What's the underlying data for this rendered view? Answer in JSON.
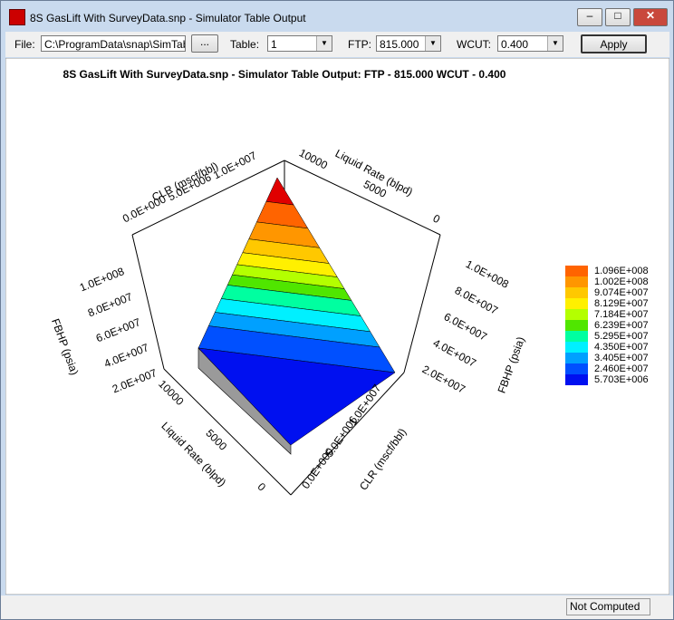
{
  "window": {
    "title": "8S GasLift With SurveyData.snp - Simulator Table Output"
  },
  "toolbar": {
    "file_label": "File:",
    "file_value": "C:\\ProgramData\\snap\\SimTab",
    "browse": "...",
    "table_label": "Table:",
    "table_value": "1",
    "ftp_label": "FTP:",
    "ftp_value": "815.000",
    "wcut_label": "WCUT:",
    "wcut_value": "0.400",
    "apply": "Apply"
  },
  "chart": {
    "title": "8S GasLift With SurveyData.snp - Simulator Table Output: FTP - 815.000 WCUT - 0.400",
    "z_axis_label": "FBHP (psia)",
    "z_ticks": [
      "1.0E+008",
      "8.0E+007",
      "6.0E+007",
      "4.0E+007",
      "2.0E+007"
    ],
    "clr_axis_label": "CLR (mscf/bbl)",
    "clr_ticks": [
      "0.0E+000",
      "5.0E+006",
      "1.0E+007"
    ],
    "rate_axis_label": "Liquid Rate (blpd)",
    "rate_ticks": [
      "10000",
      "5000",
      "0"
    ],
    "legend": [
      {
        "label": "1.096E+008",
        "color": "#ff6400"
      },
      {
        "label": "1.002E+008",
        "color": "#ff9600"
      },
      {
        "label": "9.074E+007",
        "color": "#ffc800"
      },
      {
        "label": "8.129E+007",
        "color": "#fff000"
      },
      {
        "label": "7.184E+007",
        "color": "#b4ff00"
      },
      {
        "label": "6.239E+007",
        "color": "#50e600"
      },
      {
        "label": "5.295E+007",
        "color": "#00ffa0"
      },
      {
        "label": "4.350E+007",
        "color": "#00f0ff"
      },
      {
        "label": "3.405E+007",
        "color": "#00a0ff"
      },
      {
        "label": "2.460E+007",
        "color": "#0050ff"
      },
      {
        "label": "5.703E+006",
        "color": "#0010f0"
      }
    ]
  },
  "status": {
    "text": "Not Computed"
  }
}
